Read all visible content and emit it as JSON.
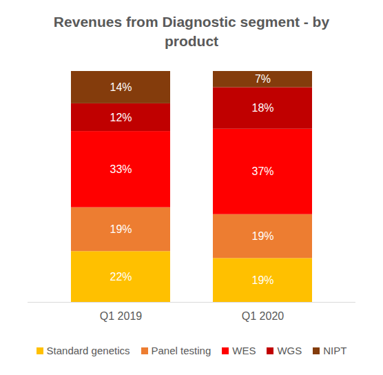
{
  "chart_data": {
    "type": "bar",
    "title": "Revenues from Diagnostic segment - by product",
    "categories": [
      "Q1 2019",
      "Q1 2020"
    ],
    "stacked": true,
    "data_labels": true,
    "legend": "bottom",
    "tick_labels": "x",
    "ylim": [
      0,
      100
    ],
    "series": [
      {
        "name": "Standard genetics",
        "color": "#ffc000",
        "values": [
          22,
          19
        ],
        "value_labels": [
          "22%",
          "19%"
        ]
      },
      {
        "name": "Panel testing",
        "color": "#ed7d31",
        "values": [
          19,
          19
        ],
        "value_labels": [
          "19%",
          "19%"
        ]
      },
      {
        "name": "WES",
        "color": "#ff0000",
        "values": [
          33,
          37
        ],
        "value_labels": [
          "33%",
          "37%"
        ]
      },
      {
        "name": "WGS",
        "color": "#c00000",
        "values": [
          12,
          18
        ],
        "value_labels": [
          "12%",
          "18%"
        ]
      },
      {
        "name": "NIPT",
        "color": "#843c0c",
        "values": [
          14,
          7
        ],
        "value_labels": [
          "14%",
          "7%"
        ]
      }
    ]
  }
}
